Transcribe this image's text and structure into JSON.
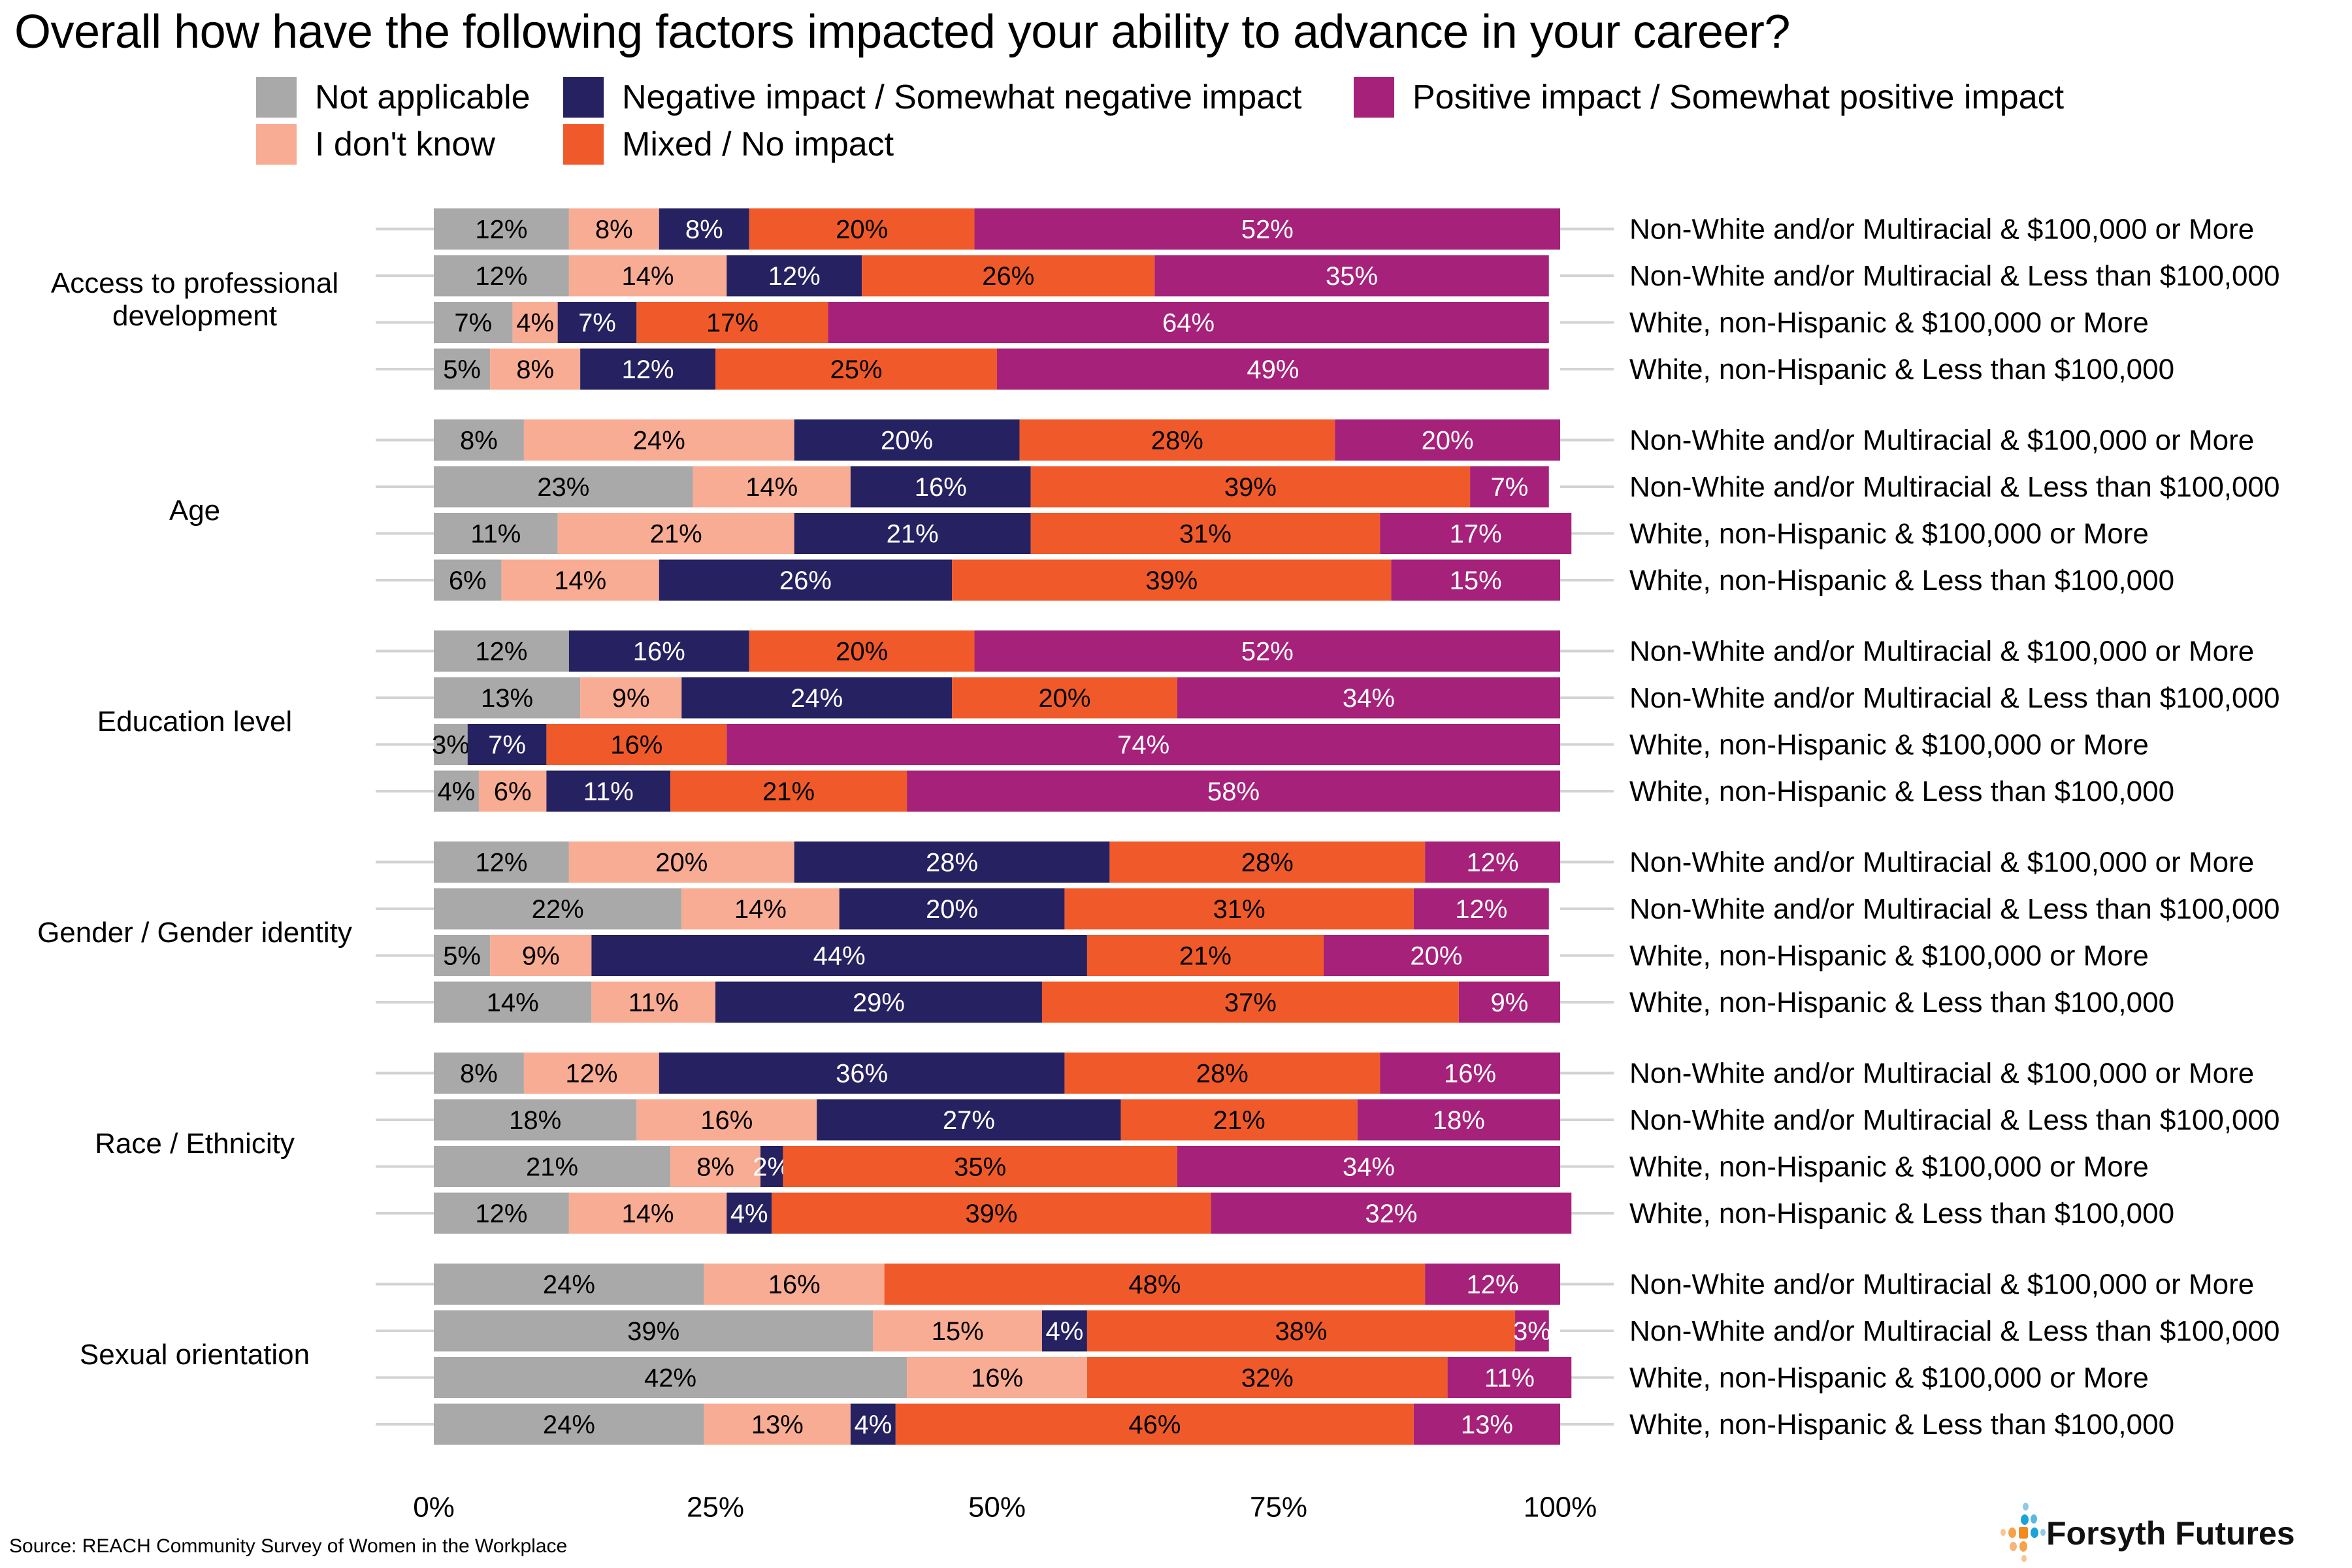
{
  "title": "Overall how have the following factors impacted your ability to advance in your career?",
  "source": "Source: REACH Community Survey of Women in the Workplace",
  "logo": {
    "text": "Forsyth Futures",
    "icon": "forsyth-futures-dots-logo"
  },
  "legend": [
    {
      "label": "Not applicable",
      "color": "#a9a9a9"
    },
    {
      "label": "Negative impact / Somewhat negative impact",
      "color": "#262161"
    },
    {
      "label": "Positive impact / Somewhat positive impact",
      "color": "#a6217a"
    },
    {
      "label": "I don't know",
      "color": "#f8ac93"
    },
    {
      "label": "Mixed / No impact",
      "color": "#f05a2a"
    }
  ],
  "chart_data": {
    "type": "bar",
    "orientation": "horizontal",
    "stacked": "percent",
    "title": "Overall how have the following factors impacted your ability to advance in your career?",
    "xlabel": "",
    "ylabel": "",
    "xlim": [
      0,
      100
    ],
    "x_ticks": [
      "0%",
      "25%",
      "50%",
      "75%",
      "100%"
    ],
    "legend_position": "top",
    "segment_order": [
      "Not applicable",
      "I don't know",
      "Negative impact / Somewhat negative impact",
      "Mixed / No impact",
      "Positive impact / Somewhat positive impact"
    ],
    "segment_colors": [
      "#a9a9a9",
      "#f8ac93",
      "#262161",
      "#f05a2a",
      "#a6217a"
    ],
    "label_text_colors": [
      "#000000",
      "#000000",
      "#ffffff",
      "#000000",
      "#ffffff"
    ],
    "row_labels": [
      "Non-White and/or Multiracial & $100,000 or More",
      "Non-White and/or Multiracial & Less than $100,000",
      "White, non-Hispanic & $100,000 or More",
      "White, non-Hispanic & Less than $100,000"
    ],
    "groups": [
      {
        "label": "Access to professional development",
        "rows": [
          [
            12,
            8,
            8,
            20,
            52
          ],
          [
            12,
            14,
            12,
            26,
            35
          ],
          [
            7,
            4,
            7,
            17,
            64
          ],
          [
            5,
            8,
            12,
            25,
            49
          ]
        ]
      },
      {
        "label": "Age",
        "rows": [
          [
            8,
            24,
            20,
            28,
            20
          ],
          [
            23,
            14,
            16,
            39,
            7
          ],
          [
            11,
            21,
            21,
            31,
            17
          ],
          [
            6,
            14,
            26,
            39,
            15
          ]
        ]
      },
      {
        "label": "Education level",
        "rows": [
          [
            12,
            0,
            16,
            20,
            52
          ],
          [
            13,
            9,
            24,
            20,
            34
          ],
          [
            3,
            0,
            7,
            16,
            74
          ],
          [
            4,
            6,
            11,
            21,
            58
          ]
        ]
      },
      {
        "label": "Gender / Gender identity",
        "rows": [
          [
            12,
            20,
            28,
            28,
            12
          ],
          [
            22,
            14,
            20,
            31,
            12
          ],
          [
            5,
            9,
            44,
            21,
            20
          ],
          [
            14,
            11,
            29,
            37,
            9
          ]
        ]
      },
      {
        "label": "Race / Ethnicity",
        "rows": [
          [
            8,
            12,
            36,
            28,
            16
          ],
          [
            18,
            16,
            27,
            21,
            18
          ],
          [
            21,
            8,
            2,
            35,
            34
          ],
          [
            12,
            14,
            4,
            39,
            32
          ]
        ]
      },
      {
        "label": "Sexual orientation",
        "rows": [
          [
            24,
            16,
            0,
            48,
            12
          ],
          [
            39,
            15,
            4,
            38,
            3
          ],
          [
            42,
            16,
            0,
            32,
            11
          ],
          [
            24,
            13,
            4,
            46,
            13
          ]
        ]
      }
    ]
  }
}
